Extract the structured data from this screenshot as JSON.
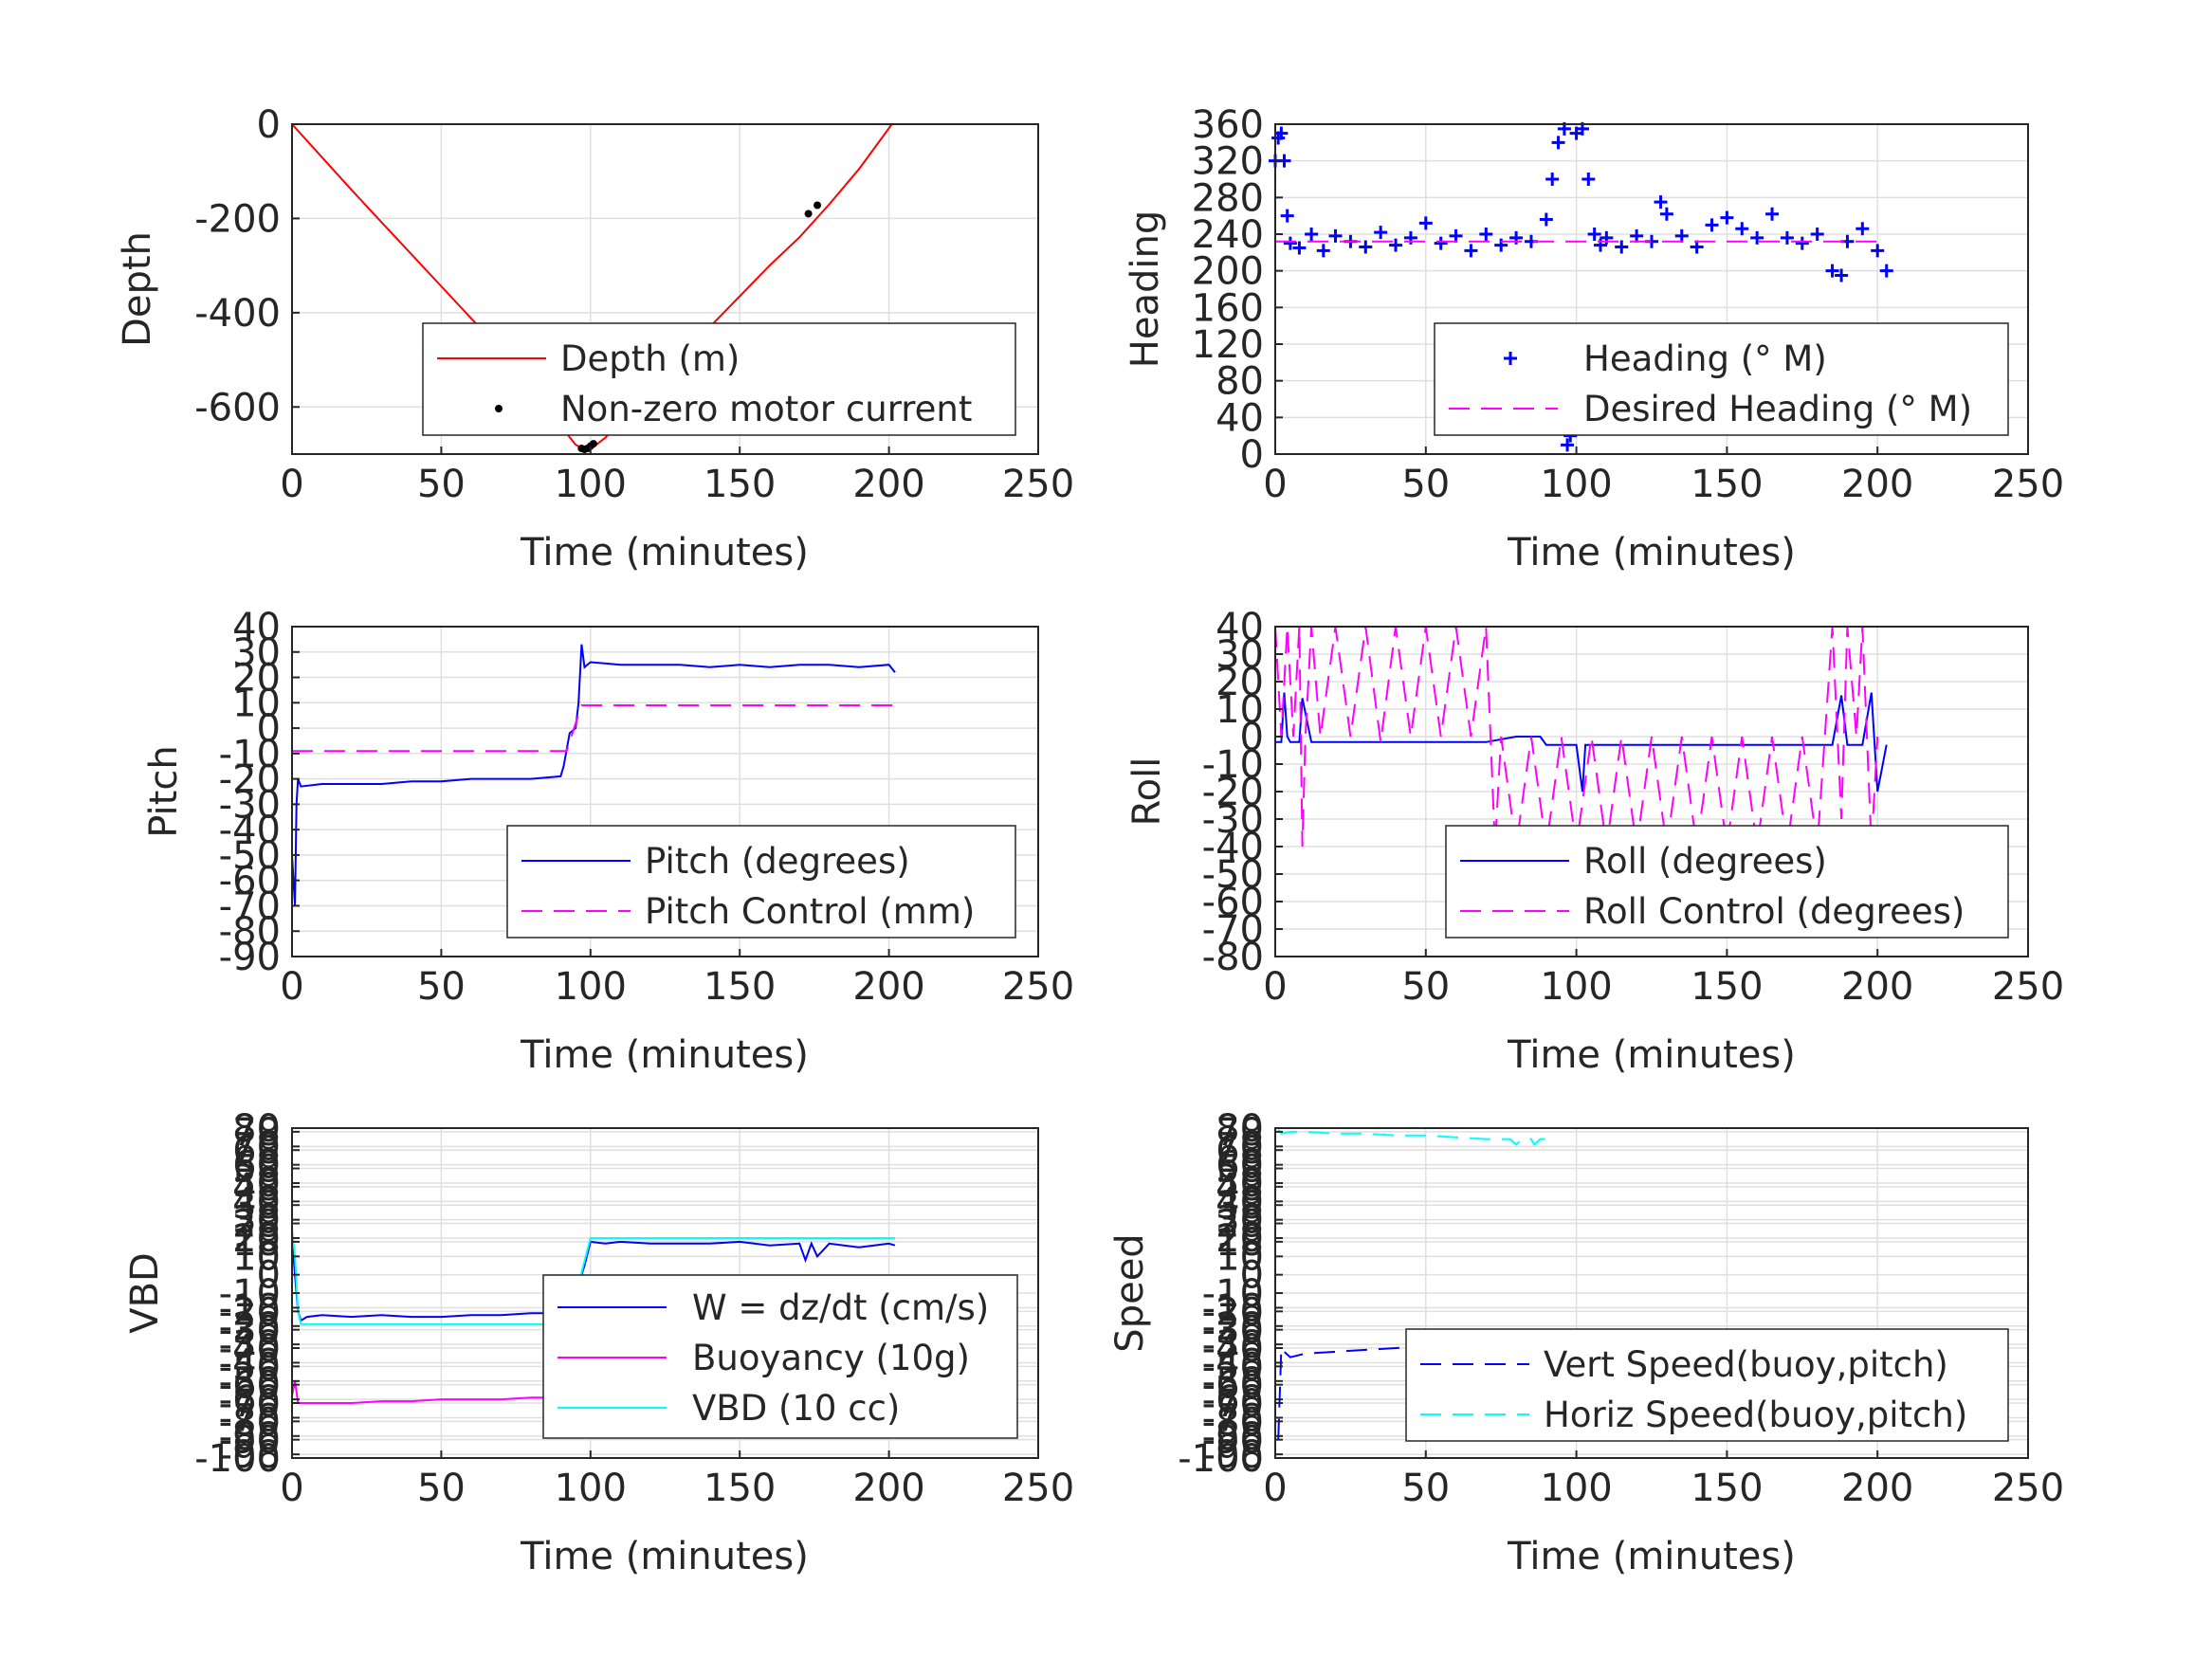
{
  "figure": {
    "background": "#ffffff"
  },
  "colors": {
    "red": "#ff0000",
    "blue": "#0000ff",
    "magenta": "#ff00ff",
    "cyan": "#00ffff",
    "black": "#000000",
    "grid": "#dfdfdf",
    "axis": "#262626"
  },
  "chart_data": [
    {
      "id": "depth",
      "type": "line",
      "xlabel": "Time (minutes)",
      "ylabel": "Depth",
      "xlim": [
        0,
        250
      ],
      "ylim": [
        -700,
        0
      ],
      "xticks": [
        "0",
        "50",
        "100",
        "150",
        "200",
        "250"
      ],
      "yticks": [
        "0",
        "-200",
        "-400",
        "-600"
      ],
      "ytick_values": [
        0,
        -200,
        -400,
        -600
      ],
      "grid": true,
      "legend_placement": "bottom-right",
      "series": [
        {
          "name": "Depth (m)",
          "style": "line",
          "color": "#ff0000",
          "x": [
            0,
            10,
            20,
            30,
            40,
            50,
            60,
            70,
            80,
            90,
            95,
            98,
            100,
            105,
            110,
            120,
            130,
            140,
            150,
            160,
            170,
            180,
            190,
            201
          ],
          "y": [
            0,
            -70,
            -140,
            -208,
            -276,
            -344,
            -412,
            -480,
            -548,
            -640,
            -680,
            -690,
            -690,
            -665,
            -630,
            -560,
            -495,
            -430,
            -365,
            -300,
            -240,
            -170,
            -95,
            0
          ]
        },
        {
          "name": "Non-zero motor current",
          "style": "dots",
          "color": "#000000",
          "x": [
            97,
            98,
            99,
            100,
            101,
            173,
            176
          ],
          "y": [
            -688,
            -690,
            -688,
            -683,
            -678,
            -190,
            -172
          ]
        }
      ]
    },
    {
      "id": "heading",
      "type": "scatter",
      "xlabel": "Time (minutes)",
      "ylabel": "Heading",
      "xlim": [
        0,
        250
      ],
      "ylim": [
        0,
        360
      ],
      "xticks": [
        "0",
        "50",
        "100",
        "150",
        "200",
        "250"
      ],
      "yticks": [
        "360",
        "320",
        "280",
        "240",
        "200",
        "160",
        "120",
        "80",
        "40",
        "0"
      ],
      "ytick_values": [
        360,
        320,
        280,
        240,
        200,
        160,
        120,
        80,
        40,
        0
      ],
      "grid": true,
      "legend_placement": "bottom-right",
      "series": [
        {
          "name": "Heading (° M)",
          "style": "plus",
          "color": "#0000ff",
          "x": [
            0,
            1,
            2,
            3,
            4,
            5,
            8,
            12,
            16,
            20,
            25,
            30,
            35,
            40,
            45,
            50,
            55,
            60,
            65,
            70,
            75,
            80,
            85,
            90,
            92,
            94,
            96,
            97,
            98,
            99,
            100,
            102,
            104,
            106,
            108,
            110,
            115,
            120,
            125,
            128,
            130,
            135,
            140,
            145,
            150,
            155,
            160,
            165,
            170,
            175,
            180,
            185,
            188,
            190,
            195,
            200,
            203
          ],
          "y": [
            320,
            345,
            350,
            320,
            260,
            230,
            225,
            240,
            222,
            238,
            232,
            226,
            242,
            228,
            236,
            252,
            230,
            238,
            222,
            240,
            228,
            236,
            232,
            256,
            300,
            340,
            355,
            10,
            20,
            35,
            350,
            355,
            300,
            240,
            228,
            236,
            226,
            238,
            232,
            275,
            262,
            238,
            226,
            250,
            258,
            246,
            236,
            262,
            236,
            230,
            240,
            200,
            195,
            232,
            246,
            222,
            200
          ]
        },
        {
          "name": "Desired Heading (° M)",
          "style": "dashed",
          "color": "#ff00ff",
          "x": [
            0,
            203
          ],
          "y": [
            232,
            232
          ]
        }
      ]
    },
    {
      "id": "pitch",
      "type": "line",
      "xlabel": "Time (minutes)",
      "ylabel": "Pitch",
      "xlim": [
        0,
        250
      ],
      "ylim": [
        -90,
        40
      ],
      "xticks": [
        "0",
        "50",
        "100",
        "150",
        "200",
        "250"
      ],
      "yticks": [
        "40",
        "30",
        "20",
        "10",
        "0",
        "-10",
        "-20",
        "-30",
        "-40",
        "-50",
        "-60",
        "-70",
        "-80",
        "-90"
      ],
      "ytick_values": [
        40,
        30,
        20,
        10,
        0,
        -10,
        -20,
        -30,
        -40,
        -50,
        -60,
        -70,
        -80,
        -90
      ],
      "grid": true,
      "legend_placement": "bottom-right",
      "series": [
        {
          "name": "Pitch (degrees)",
          "style": "line",
          "color": "#0000ff",
          "x": [
            0,
            1,
            1.5,
            2,
            3,
            10,
            20,
            30,
            40,
            50,
            60,
            70,
            80,
            90,
            91,
            93,
            95,
            96,
            97,
            98,
            100,
            110,
            120,
            130,
            140,
            150,
            160,
            170,
            180,
            190,
            200,
            202
          ],
          "y": [
            -50,
            -70,
            -30,
            -20,
            -23,
            -22,
            -22,
            -22,
            -21,
            -21,
            -20,
            -20,
            -20,
            -19,
            -15,
            -2,
            0,
            10,
            33,
            24,
            26,
            25,
            25,
            25,
            24,
            25,
            24,
            25,
            25,
            24,
            25,
            22
          ]
        },
        {
          "name": "Pitch Control (mm)",
          "style": "dashed",
          "color": "#ff00ff",
          "x": [
            0,
            92,
            97,
            202
          ],
          "y": [
            -9,
            -9,
            9,
            9
          ]
        }
      ]
    },
    {
      "id": "roll",
      "type": "line",
      "xlabel": "Time (minutes)",
      "ylabel": "Roll",
      "xlim": [
        0,
        250
      ],
      "ylim": [
        -80,
        40
      ],
      "xticks": [
        "0",
        "50",
        "100",
        "150",
        "200",
        "250"
      ],
      "yticks": [
        "40",
        "30",
        "20",
        "10",
        "0",
        "-10",
        "-20",
        "-30",
        "-40",
        "-50",
        "-60",
        "-70",
        "-80"
      ],
      "ytick_values": [
        40,
        30,
        20,
        10,
        0,
        -10,
        -20,
        -30,
        -40,
        -50,
        -60,
        -70,
        -80
      ],
      "grid": true,
      "legend_placement": "bottom-right",
      "series": [
        {
          "name": "Roll (degrees)",
          "style": "line",
          "color": "#0000ff",
          "x": [
            0,
            2,
            3,
            4,
            5,
            8,
            9,
            12,
            20,
            30,
            40,
            50,
            60,
            70,
            80,
            88,
            90,
            95,
            100,
            102,
            103,
            110,
            120,
            130,
            140,
            150,
            160,
            170,
            180,
            185,
            188,
            190,
            195,
            198,
            200,
            203
          ],
          "y": [
            -2,
            -2,
            16,
            0,
            -2,
            -2,
            14,
            -2,
            -2,
            -2,
            -2,
            -2,
            -2,
            -2,
            0,
            0,
            -3,
            -3,
            -3,
            -20,
            -3,
            -3,
            -3,
            -3,
            -3,
            -3,
            -3,
            -3,
            -3,
            -3,
            15,
            -3,
            -3,
            16,
            -20,
            -3
          ]
        },
        {
          "name": "Roll Control (degrees)",
          "style": "dashed",
          "color": "#ff00ff",
          "x": [
            0,
            2,
            4,
            6,
            8,
            9,
            10,
            12,
            15,
            20,
            25,
            30,
            35,
            40,
            45,
            50,
            55,
            60,
            65,
            70,
            73,
            75,
            80,
            85,
            90,
            95,
            100,
            105,
            110,
            115,
            120,
            125,
            130,
            135,
            140,
            145,
            150,
            155,
            160,
            165,
            170,
            175,
            180,
            185,
            188,
            190,
            193,
            195,
            198,
            200
          ],
          "y": [
            40,
            0,
            40,
            0,
            40,
            -40,
            0,
            40,
            0,
            40,
            0,
            40,
            -2,
            40,
            0,
            40,
            0,
            40,
            0,
            40,
            -40,
            0,
            -40,
            0,
            -40,
            0,
            -40,
            0,
            -40,
            0,
            -40,
            0,
            -40,
            0,
            -40,
            0,
            -40,
            0,
            -40,
            0,
            -40,
            0,
            -40,
            40,
            -30,
            40,
            0,
            40,
            -40,
            0
          ]
        }
      ]
    },
    {
      "id": "vbd",
      "type": "line",
      "xlabel": "Time (minutes)",
      "ylabel": "VBD",
      "xlim": [
        0,
        250
      ],
      "ylim": [
        -100,
        80
      ],
      "xticks": [
        "0",
        "50",
        "100",
        "150",
        "200",
        "250"
      ],
      "yticks": [
        "80",
        "70",
        "60",
        "50",
        "40",
        "30",
        "20",
        "10",
        "0",
        "-10",
        "-20",
        "-30",
        "-40",
        "-50",
        "-60",
        "-70",
        "-80",
        "-90",
        "-100"
      ],
      "ytick_values": [
        80,
        70,
        60,
        50,
        40,
        30,
        20,
        10,
        0,
        -10,
        -20,
        -30,
        -40,
        -50,
        -60,
        -70,
        -80,
        -90,
        -100
      ],
      "ytick_overlap_labels": [
        "78",
        "68",
        "58",
        "48",
        "38",
        "28",
        "18",
        "-18",
        "-28",
        "-38",
        "-48",
        "-58",
        "-68",
        "-78",
        "-88",
        "-98"
      ],
      "ytick_overlap_values": [
        78,
        68,
        58,
        48,
        38,
        28,
        18,
        -18,
        -28,
        -38,
        -48,
        -58,
        -68,
        -78,
        -88,
        -98
      ],
      "grid": true,
      "legend_placement": "bottom-right",
      "series": [
        {
          "name": "W = dz/dt (cm/s)",
          "style": "line",
          "color": "#0000ff",
          "x": [
            0,
            1,
            2,
            3,
            5,
            10,
            20,
            30,
            40,
            50,
            60,
            70,
            80,
            90,
            92,
            95,
            98,
            100,
            105,
            110,
            120,
            130,
            140,
            150,
            160,
            170,
            172,
            174,
            176,
            180,
            190,
            200,
            202
          ],
          "y": [
            20,
            0,
            -20,
            -25,
            -23,
            -22,
            -23,
            -22,
            -23,
            -23,
            -22,
            -22,
            -21,
            -21,
            -24,
            -10,
            5,
            18,
            17,
            18,
            17,
            17,
            17,
            18,
            16,
            17,
            8,
            17,
            10,
            17,
            15,
            17,
            16
          ]
        },
        {
          "name": "Buoyancy (10g)",
          "style": "line",
          "color": "#ff00ff",
          "x": [
            0,
            1,
            2,
            10,
            20,
            30,
            40,
            50,
            60,
            70,
            80,
            90
          ],
          "y": [
            -66,
            -58,
            -70,
            -70,
            -70,
            -69,
            -69,
            -68,
            -68,
            -68,
            -67,
            -67
          ]
        },
        {
          "name": "VBD (10 cc)",
          "style": "line",
          "color": "#00ffff",
          "x": [
            0,
            1,
            2,
            3,
            5,
            10,
            20,
            30,
            40,
            50,
            60,
            70,
            80,
            90,
            93,
            96,
            100,
            105,
            110,
            120,
            130,
            140,
            150,
            160,
            170,
            180,
            190,
            200,
            202
          ],
          "y": [
            25,
            10,
            -20,
            -27,
            -27,
            -27,
            -27,
            -27,
            -27,
            -27,
            -27,
            -27,
            -27,
            -27,
            -22,
            -5,
            20,
            20,
            20,
            20,
            20,
            20,
            20,
            20,
            20,
            20,
            20,
            20,
            20
          ]
        }
      ]
    },
    {
      "id": "speed",
      "type": "line",
      "xlabel": "Time (minutes)",
      "ylabel": "Speed",
      "xlim": [
        0,
        250
      ],
      "ylim": [
        -100,
        80
      ],
      "xticks": [
        "0",
        "50",
        "100",
        "150",
        "200",
        "250"
      ],
      "yticks": [
        "80",
        "70",
        "60",
        "50",
        "40",
        "30",
        "20",
        "10",
        "0",
        "-10",
        "-20",
        "-30",
        "-40",
        "-50",
        "-60",
        "-70",
        "-80",
        "-90",
        "-100"
      ],
      "ytick_values": [
        80,
        70,
        60,
        50,
        40,
        30,
        20,
        10,
        0,
        -10,
        -20,
        -30,
        -40,
        -50,
        -60,
        -70,
        -80,
        -90,
        -100
      ],
      "ytick_overlap_labels": [
        "78",
        "68",
        "58",
        "48",
        "38",
        "28",
        "18",
        "-18",
        "-28",
        "-38",
        "-48",
        "-58",
        "-68",
        "-78",
        "-88",
        "-98"
      ],
      "ytick_overlap_values": [
        78,
        68,
        58,
        48,
        38,
        28,
        18,
        -18,
        -28,
        -38,
        -48,
        -58,
        -68,
        -78,
        -88,
        -98
      ],
      "grid": true,
      "legend_placement": "bottom-right",
      "series": [
        {
          "name": "Vert Speed(buoy,pitch)",
          "style": "dashed",
          "color": "#0000ff",
          "x": [
            1,
            1.5,
            2,
            3,
            5,
            10,
            20,
            30,
            40,
            50,
            60,
            70,
            80,
            85,
            87,
            89,
            90
          ],
          "y": [
            -90,
            -65,
            -40,
            -42,
            -45,
            -43,
            -42,
            -41,
            -40,
            -39,
            -38,
            -37,
            -37,
            -36,
            -33,
            -36,
            -33
          ]
        },
        {
          "name": "Horiz Speed(buoy,pitch)",
          "style": "dashed",
          "color": "#00ffff",
          "x": [
            1,
            2,
            5,
            10,
            20,
            30,
            40,
            50,
            60,
            70,
            78,
            80,
            82,
            85,
            86,
            88,
            90
          ],
          "y": [
            79,
            77,
            78,
            78,
            77,
            77,
            76,
            76,
            75,
            74,
            74,
            71,
            74,
            74,
            71,
            74,
            74
          ]
        }
      ]
    }
  ]
}
